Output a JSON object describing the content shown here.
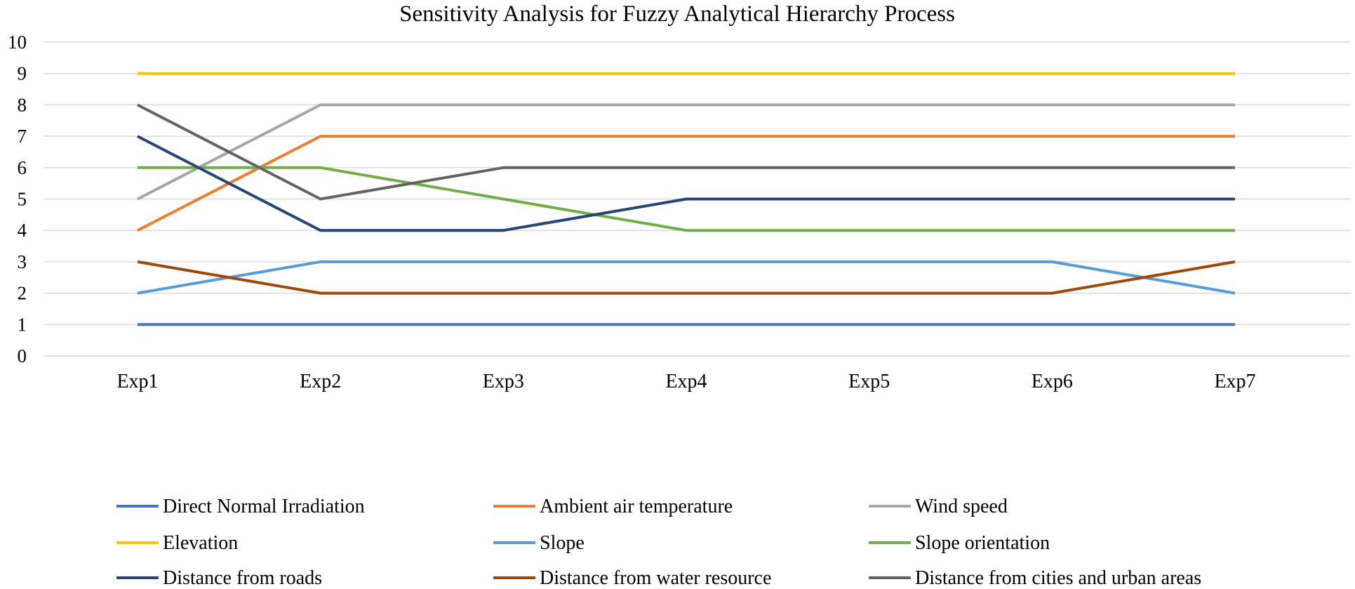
{
  "chart_data": {
    "type": "line",
    "title": "Sensitivity Analysis for Fuzzy Analytical Hierarchy Process",
    "xlabel": "",
    "ylabel": "",
    "categories": [
      "Exp1",
      "Exp2",
      "Exp3",
      "Exp4",
      "Exp5",
      "Exp6",
      "Exp7"
    ],
    "ylim": [
      0,
      10
    ],
    "yticks": [
      0,
      1,
      2,
      3,
      4,
      5,
      6,
      7,
      8,
      9,
      10
    ],
    "grid": true,
    "legend_position": "bottom",
    "series": [
      {
        "name": "Direct Normal Irradiation",
        "color": "#4472c4",
        "values": [
          1,
          1,
          1,
          1,
          1,
          1,
          1
        ]
      },
      {
        "name": "Ambient air temperature",
        "color": "#ed7d31",
        "values": [
          4,
          7,
          7,
          7,
          7,
          7,
          7
        ]
      },
      {
        "name": "Wind speed",
        "color": "#a5a5a5",
        "values": [
          5,
          8,
          8,
          8,
          8,
          8,
          8
        ]
      },
      {
        "name": "Elevation",
        "color": "#ffc000",
        "values": [
          9,
          9,
          9,
          9,
          9,
          9,
          9
        ]
      },
      {
        "name": "Slope",
        "color": "#5b9bd5",
        "values": [
          2,
          3,
          3,
          3,
          3,
          3,
          2
        ]
      },
      {
        "name": "Slope orientation",
        "color": "#70ad47",
        "values": [
          6,
          6,
          5,
          4,
          4,
          4,
          4
        ]
      },
      {
        "name": "Distance from roads",
        "color": "#264478",
        "values": [
          7,
          4,
          4,
          5,
          5,
          5,
          5
        ]
      },
      {
        "name": "Distance from water resource",
        "color": "#9e480e",
        "values": [
          3,
          2,
          2,
          2,
          2,
          2,
          3
        ]
      },
      {
        "name": "Distance from cities and urban areas",
        "color": "#636363",
        "values": [
          8,
          5,
          6,
          6,
          6,
          6,
          6
        ]
      }
    ]
  }
}
